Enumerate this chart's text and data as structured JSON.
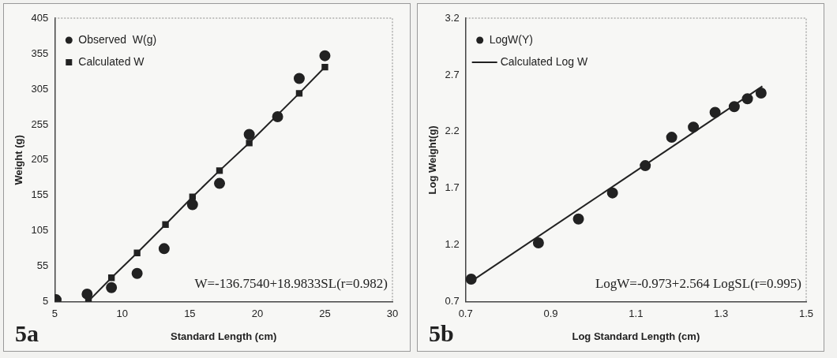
{
  "chart_data": [
    {
      "type": "scatter",
      "xlabel": "Standard Length (cm)",
      "ylabel": "Weight (g)",
      "xlim": [
        5,
        30
      ],
      "xticks": [
        5,
        10,
        15,
        20,
        25,
        30
      ],
      "ylim": [
        5,
        405
      ],
      "yticks": [
        5,
        55,
        105,
        155,
        205,
        255,
        305,
        355,
        405
      ],
      "grid": false,
      "legend": "top left",
      "series": [
        {
          "name": "Observed  W(g)",
          "type": "scatter",
          "marker": "circle",
          "color": "#222222",
          "x": [
            5.1,
            7.4,
            9.2,
            11.1,
            13.1,
            15.2,
            17.2,
            19.4,
            21.5,
            23.1,
            25
          ],
          "values": [
            8,
            16,
            25,
            45,
            80,
            142,
            172,
            241,
            266,
            320,
            352
          ]
        },
        {
          "name": "Calculated W",
          "type": "line",
          "marker": "square",
          "color": "#222222",
          "x": [
            7.5,
            9.2,
            11.1,
            13.2,
            15.2,
            17.2,
            19.4,
            21.5,
            23.1,
            25
          ],
          "values": [
            6,
            39,
            74,
            114,
            153,
            190,
            229,
            null,
            299,
            336
          ]
        }
      ],
      "annotations": [
        "W=-136.7540+18.9833SL(r=0.982)",
        "5a"
      ]
    },
    {
      "type": "scatter",
      "xlabel": "Log Standard Length (cm)",
      "ylabel": "Log Weight(g)",
      "xlim": [
        0.7,
        1.5
      ],
      "xticks": [
        {
          "value": 0.7,
          "label": "0.7"
        },
        {
          "value": 0.9,
          "label": "0.9"
        },
        {
          "value": 1.1,
          "label": "1.1"
        },
        {
          "value": 1.3,
          "label": "1.3"
        },
        {
          "value": 1.5,
          "label": "1.5"
        }
      ],
      "ylim": [
        0.7,
        3.2
      ],
      "yticks": [
        {
          "value": 0.7,
          "label": "0.7"
        },
        {
          "value": 1.2,
          "label": "1.2"
        },
        {
          "value": 1.7,
          "label": "1.7"
        },
        {
          "value": 2.2,
          "label": "2.2"
        },
        {
          "value": 2.7,
          "label": "2.7"
        },
        {
          "value": 3.2,
          "label": "3.2"
        }
      ],
      "grid": false,
      "legend": "top left",
      "series": [
        {
          "name": "LogW(Y)",
          "type": "scatter",
          "marker": "circle",
          "color": "#222222",
          "x": [
            0.713,
            0.871,
            0.965,
            1.045,
            1.122,
            1.184,
            1.235,
            1.286,
            1.331,
            1.362,
            1.394
          ],
          "values": [
            0.9,
            1.22,
            1.43,
            1.66,
            1.9,
            2.15,
            2.24,
            2.37,
            2.42,
            2.49,
            2.54
          ]
        },
        {
          "name": "Calculated Log W",
          "type": "line",
          "marker": "none",
          "color": "#222222",
          "x": [
            0.713,
            1.397
          ],
          "values": [
            0.88,
            2.6
          ]
        }
      ],
      "annotations": [
        "LogW=-0.973+2.564 LogSL(r=0.995)",
        "5b"
      ]
    }
  ]
}
